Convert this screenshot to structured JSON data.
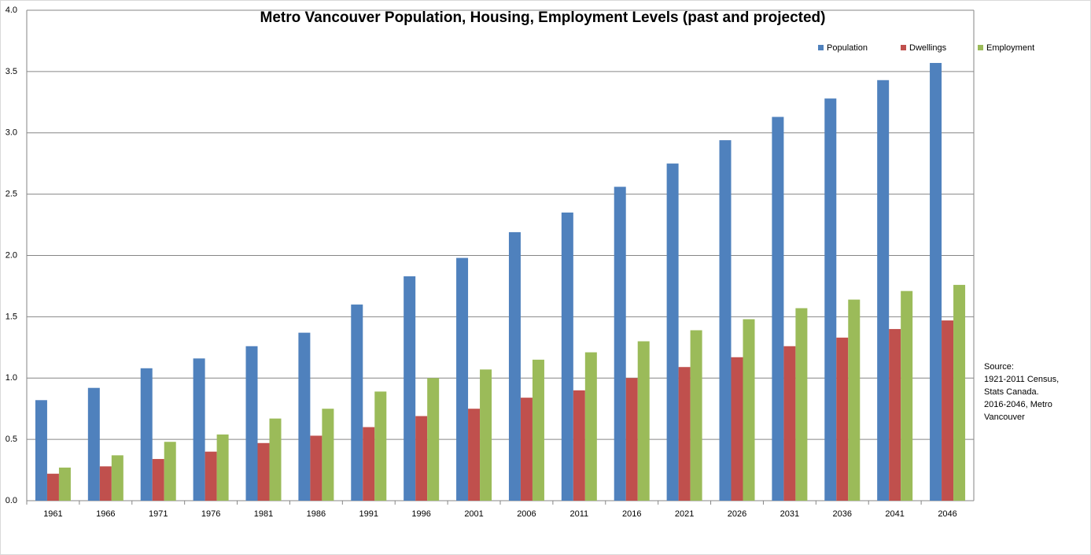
{
  "chart_data": {
    "type": "bar",
    "title": "Metro Vancouver Population, Housing, Employment Levels (past and projected)",
    "categories": [
      "1961",
      "1966",
      "1971",
      "1976",
      "1981",
      "1986",
      "1991",
      "1996",
      "2001",
      "2006",
      "2011",
      "2016",
      "2021",
      "2026",
      "2031",
      "2036",
      "2041",
      "2046"
    ],
    "series": [
      {
        "name": "Population",
        "color": "#4f81bd",
        "values": [
          0.82,
          0.92,
          1.08,
          1.16,
          1.26,
          1.37,
          1.6,
          1.83,
          1.98,
          2.19,
          2.35,
          2.56,
          2.75,
          2.94,
          3.13,
          3.28,
          3.43,
          3.57
        ]
      },
      {
        "name": "Dwellings",
        "color": "#c0504d",
        "values": [
          0.22,
          0.28,
          0.34,
          0.4,
          0.47,
          0.53,
          0.6,
          0.69,
          0.75,
          0.84,
          0.9,
          1.0,
          1.09,
          1.17,
          1.26,
          1.33,
          1.4,
          1.47
        ]
      },
      {
        "name": "Employment",
        "color": "#9bbb59",
        "values": [
          0.27,
          0.37,
          0.48,
          0.54,
          0.67,
          0.75,
          0.89,
          1.0,
          1.07,
          1.15,
          1.21,
          1.3,
          1.39,
          1.48,
          1.57,
          1.64,
          1.71,
          1.76
        ]
      }
    ],
    "ylim": [
      0,
      4
    ],
    "yticks": [
      {
        "value": 0,
        "label": "0.0"
      },
      0.5,
      {
        "value": 1,
        "label": "1.0"
      },
      1.5,
      {
        "value": 2,
        "label": "2.0"
      },
      2.5,
      {
        "value": 3,
        "label": "3.0"
      },
      3.5,
      {
        "value": 4,
        "label": "4.0"
      }
    ],
    "grid": true,
    "legend": "top-right",
    "annotation": [
      "Source:",
      "1921-2011 Census,",
      "Stats Canada.",
      "2016-2046, Metro",
      "Vancouver"
    ]
  }
}
